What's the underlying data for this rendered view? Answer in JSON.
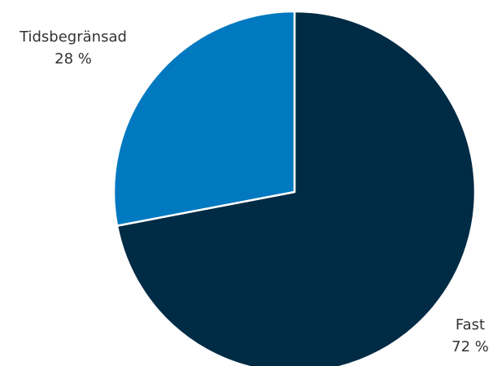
{
  "chart_data": {
    "type": "pie",
    "title": "",
    "start_angle_deg": 0,
    "direction": "clockwise",
    "slices": [
      {
        "label": "Fast",
        "value": 72,
        "value_label": "72 %",
        "color": "#002b45"
      },
      {
        "label": "Tidsbegränsad",
        "value": 28,
        "value_label": "28 %",
        "color": "#0079c0"
      }
    ],
    "slice_border_color": "#ffffff",
    "label_color": "#333333"
  }
}
